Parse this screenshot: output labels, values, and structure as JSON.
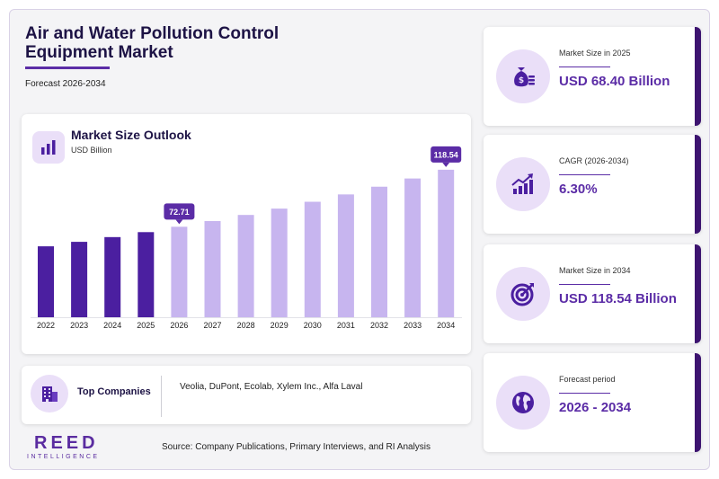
{
  "header": {
    "title_line1": "Air and Water Pollution Control",
    "title_line2": "Equipment Market",
    "subtitle": "Forecast 2026-2034"
  },
  "chart_card": {
    "title": "Market Size Outlook",
    "unit": "USD Billion",
    "icon": "bar-chart-icon"
  },
  "chart_data": {
    "type": "bar",
    "title": "Market Size Outlook",
    "ylabel": "USD Billion",
    "categories": [
      "2022",
      "2023",
      "2024",
      "2025",
      "2026",
      "2027",
      "2028",
      "2029",
      "2030",
      "2031",
      "2032",
      "2033",
      "2034"
    ],
    "values": [
      57.0,
      60.6,
      64.4,
      68.4,
      72.71,
      77.3,
      82.2,
      87.3,
      92.8,
      98.7,
      104.9,
      111.5,
      118.54
    ],
    "labeled": {
      "2026": "72.71",
      "2034": "118.54"
    },
    "historical_color": "#4b1fa0",
    "forecast_color": "#c7b5ef",
    "label_color": "#5b2ca6",
    "ylim": [
      0,
      130
    ]
  },
  "companies": {
    "label": "Top Companies",
    "list": "Veolia, DuPont, Ecolab, Xylem Inc., Alfa Laval",
    "icon": "building-icon"
  },
  "logo": {
    "main": "REED",
    "sub": "INTELLIGENCE"
  },
  "source": "Source: Company Publications, Primary Interviews, and RI Analysis",
  "stats": [
    {
      "label": "Market Size in 2025",
      "value": "USD 68.40 Billion",
      "icon": "money-bag-icon"
    },
    {
      "label": "CAGR (2026-2034)",
      "value": "6.30%",
      "icon": "growth-chart-icon"
    },
    {
      "label": "Market Size in 2034",
      "value": "USD 118.54 Billion",
      "icon": "target-icon"
    },
    {
      "label": "Forecast period",
      "value": "2026 - 2034",
      "icon": "globe-icon"
    }
  ],
  "colors": {
    "accent": "#5b2ca6",
    "dark": "#1d1345",
    "icon_bg": "#eadff8"
  }
}
